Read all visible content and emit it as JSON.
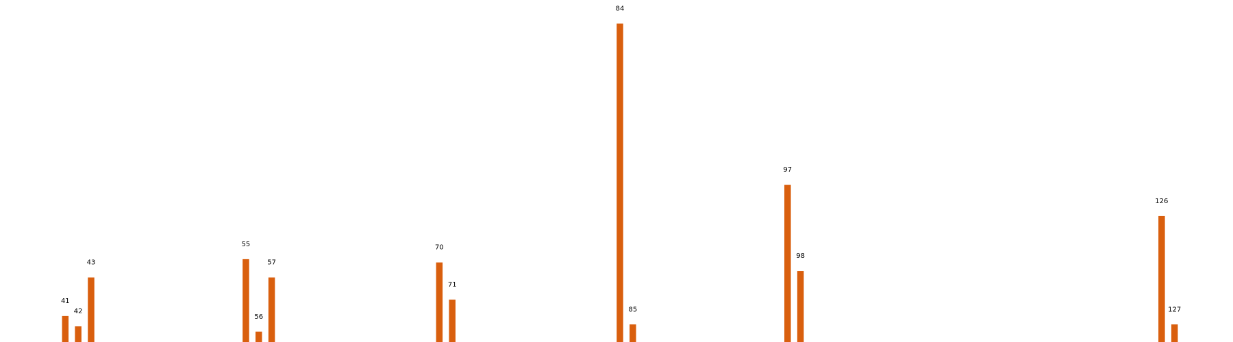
{
  "chart_data": {
    "type": "bar",
    "x": [
      41,
      42,
      43,
      55,
      56,
      57,
      70,
      71,
      84,
      85,
      97,
      98,
      126,
      127
    ],
    "values": [
      4.1,
      2.5,
      10.0,
      12.8,
      1.7,
      10.0,
      12.3,
      6.6,
      48.9,
      2.8,
      24.2,
      11.0,
      19.4,
      2.8
    ],
    "xlim": [
      37,
      131
    ],
    "ylim": [
      0,
      50
    ],
    "bar_color": "#d95f0e",
    "axes_visible": false,
    "grid": false
  }
}
